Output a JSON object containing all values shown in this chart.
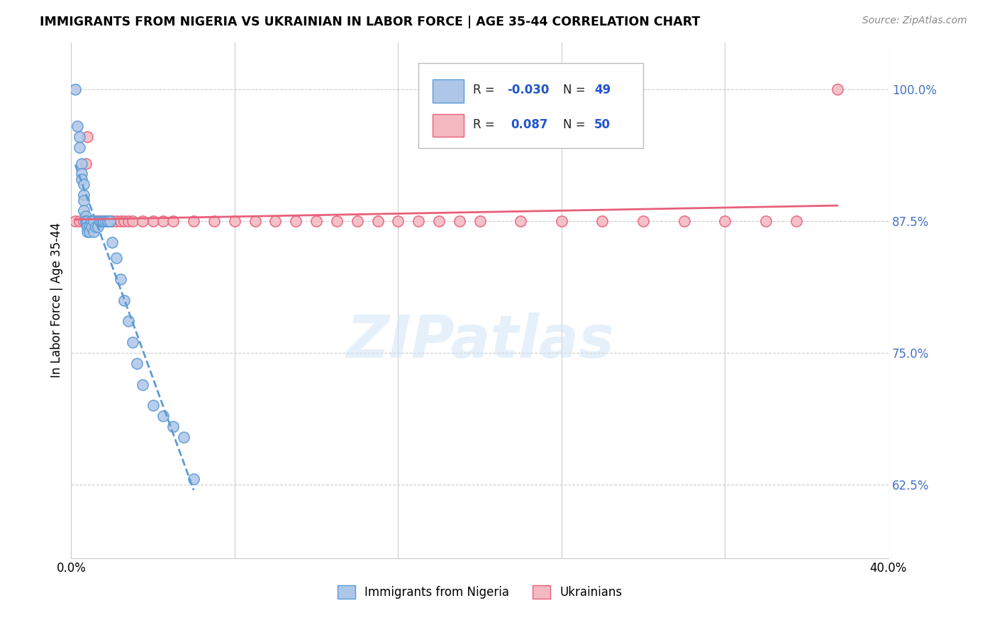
{
  "title": "IMMIGRANTS FROM NIGERIA VS UKRAINIAN IN LABOR FORCE | AGE 35-44 CORRELATION CHART",
  "source": "Source: ZipAtlas.com",
  "ylabel": "In Labor Force | Age 35-44",
  "xlim": [
    0.0,
    0.4
  ],
  "ylim": [
    0.555,
    1.045
  ],
  "yticks": [
    0.625,
    0.75,
    0.875,
    1.0
  ],
  "ytick_labels": [
    "62.5%",
    "75.0%",
    "87.5%",
    "100.0%"
  ],
  "xticks": [
    0.0,
    0.08,
    0.16,
    0.24,
    0.32,
    0.4
  ],
  "xtick_labels": [
    "0.0%",
    "",
    "",
    "",
    "",
    "40.0%"
  ],
  "nigeria_r": -0.03,
  "nigeria_n": 49,
  "ukraine_r": 0.087,
  "ukraine_n": 50,
  "nigeria_color": "#aec6e8",
  "ukraine_color": "#f4b8c1",
  "nigeria_line_color": "#5b9bd5",
  "ukraine_line_color": "#e8607a",
  "watermark": "ZIPatlas",
  "nigeria_x": [
    0.002,
    0.003,
    0.004,
    0.004,
    0.005,
    0.005,
    0.005,
    0.006,
    0.006,
    0.006,
    0.006,
    0.007,
    0.007,
    0.007,
    0.007,
    0.008,
    0.008,
    0.008,
    0.008,
    0.009,
    0.009,
    0.01,
    0.01,
    0.01,
    0.011,
    0.011,
    0.012,
    0.013,
    0.014,
    0.015,
    0.016,
    0.016,
    0.017,
    0.018,
    0.018,
    0.019,
    0.02,
    0.022,
    0.024,
    0.026,
    0.028,
    0.03,
    0.032,
    0.035,
    0.04,
    0.045,
    0.05,
    0.055,
    0.06
  ],
  "nigeria_y": [
    1.0,
    0.965,
    0.955,
    0.945,
    0.93,
    0.92,
    0.915,
    0.91,
    0.9,
    0.895,
    0.885,
    0.88,
    0.875,
    0.875,
    0.875,
    0.875,
    0.87,
    0.87,
    0.865,
    0.87,
    0.865,
    0.875,
    0.875,
    0.87,
    0.875,
    0.865,
    0.87,
    0.87,
    0.875,
    0.875,
    0.875,
    0.875,
    0.875,
    0.875,
    0.875,
    0.875,
    0.855,
    0.84,
    0.82,
    0.8,
    0.78,
    0.76,
    0.74,
    0.72,
    0.7,
    0.69,
    0.68,
    0.67,
    0.63
  ],
  "ukraine_x": [
    0.002,
    0.004,
    0.006,
    0.007,
    0.008,
    0.009,
    0.01,
    0.011,
    0.012,
    0.013,
    0.014,
    0.015,
    0.016,
    0.017,
    0.018,
    0.019,
    0.02,
    0.022,
    0.024,
    0.026,
    0.028,
    0.03,
    0.035,
    0.04,
    0.045,
    0.05,
    0.06,
    0.07,
    0.08,
    0.09,
    0.1,
    0.11,
    0.12,
    0.13,
    0.14,
    0.15,
    0.16,
    0.17,
    0.18,
    0.19,
    0.2,
    0.22,
    0.24,
    0.26,
    0.28,
    0.3,
    0.32,
    0.34,
    0.355,
    0.375
  ],
  "ukraine_y": [
    0.875,
    0.875,
    0.875,
    0.93,
    0.955,
    0.875,
    0.875,
    0.875,
    0.875,
    0.875,
    0.875,
    0.875,
    0.875,
    0.875,
    0.875,
    0.875,
    0.875,
    0.875,
    0.875,
    0.875,
    0.875,
    0.875,
    0.875,
    0.875,
    0.875,
    0.875,
    0.875,
    0.875,
    0.875,
    0.875,
    0.875,
    0.875,
    0.875,
    0.875,
    0.875,
    0.875,
    0.875,
    0.875,
    0.875,
    0.875,
    0.875,
    0.875,
    0.875,
    0.875,
    0.875,
    0.875,
    0.875,
    0.875,
    0.875,
    1.0
  ]
}
